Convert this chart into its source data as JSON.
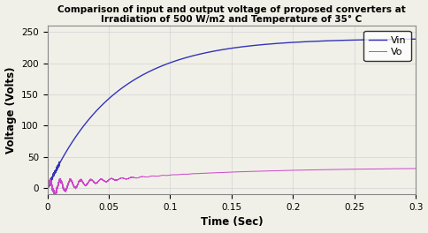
{
  "title_line1": "Comparison of input and output voltage of proposed converters at",
  "title_line2": "Irradiation of 500 W/m2 and Temperature of 35° C",
  "xlabel": "Time (Sec)",
  "ylabel": "Voltage (Volts)",
  "xlim": [
    0,
    0.3
  ],
  "ylim": [
    -10,
    260
  ],
  "yticks": [
    0,
    50,
    100,
    150,
    200,
    250
  ],
  "xticks": [
    0,
    0.05,
    0.1,
    0.15,
    0.2,
    0.25,
    0.3
  ],
  "vin_color": "#3333bb",
  "vo_color": "#cc44cc",
  "legend_labels": [
    "Vin",
    "Vo"
  ],
  "background_color": "#f0f0e8",
  "grid_color": "#d8d8d8",
  "vin_final": 240,
  "vin_tau": 0.055,
  "vo_final": 33,
  "vo_tau": 0.1,
  "vo_osc_freq": 120,
  "vo_osc_amp_initial": 15,
  "vo_osc_decay": 0.025
}
